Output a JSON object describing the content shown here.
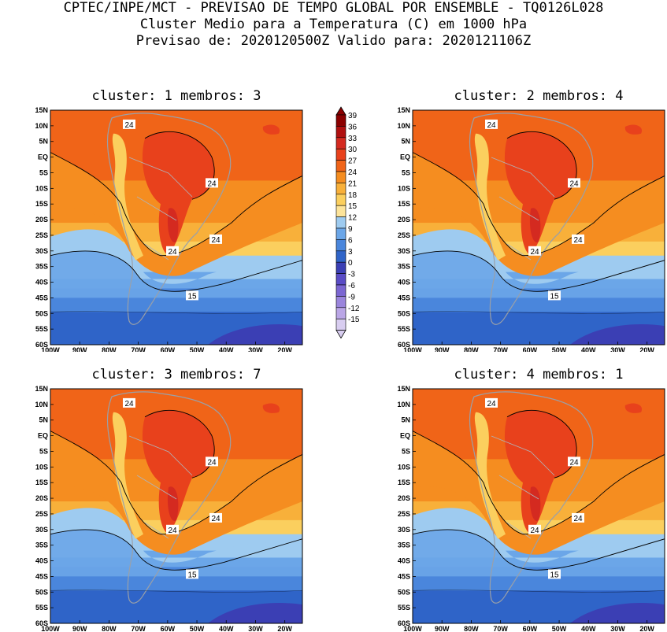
{
  "header": {
    "line1": "CPTEC/INPE/MCT - PREVISAO DE TEMPO GLOBAL POR ENSEMBLE - TQ0126L028",
    "line2": "Cluster Medio para a Temperatura (C) em 1000 hPa",
    "line3": "Previsao de: 2020120500Z   Valido para: 2020121106Z"
  },
  "panels": [
    {
      "title": "cluster: 1   membros: 3"
    },
    {
      "title": "cluster: 2   membros: 4"
    },
    {
      "title": "cluster: 3   membros: 7"
    },
    {
      "title": "cluster: 4   membros: 1"
    }
  ],
  "axes": {
    "lat_labels": [
      "15N",
      "10N",
      "5N",
      "EQ",
      "5S",
      "10S",
      "15S",
      "20S",
      "25S",
      "30S",
      "35S",
      "40S",
      "45S",
      "50S",
      "55S",
      "60S"
    ],
    "lon_labels": [
      "100W",
      "90W",
      "80W",
      "70W",
      "60W",
      "50W",
      "40W",
      "30W",
      "20W"
    ]
  },
  "contour_labels": {
    "warm": "24",
    "cool": "15"
  },
  "colorbar": {
    "labels": [
      "39",
      "36",
      "33",
      "30",
      "27",
      "24",
      "21",
      "18",
      "15",
      "12",
      "9",
      "6",
      "3",
      "0",
      "-3",
      "-6",
      "-9",
      "-12",
      "-15"
    ],
    "colors": [
      "#8b0000",
      "#b01010",
      "#d42a20",
      "#e8411c",
      "#f06418",
      "#f58d20",
      "#f8b03a",
      "#fbcf5e",
      "#fde49a",
      "#9ecbf0",
      "#6ba6e8",
      "#4a86dc",
      "#2f64c8",
      "#3b3fb4",
      "#5a4cc6",
      "#7b66d2",
      "#9a85dc",
      "#baa6e6",
      "#d8cdf0"
    ]
  }
}
